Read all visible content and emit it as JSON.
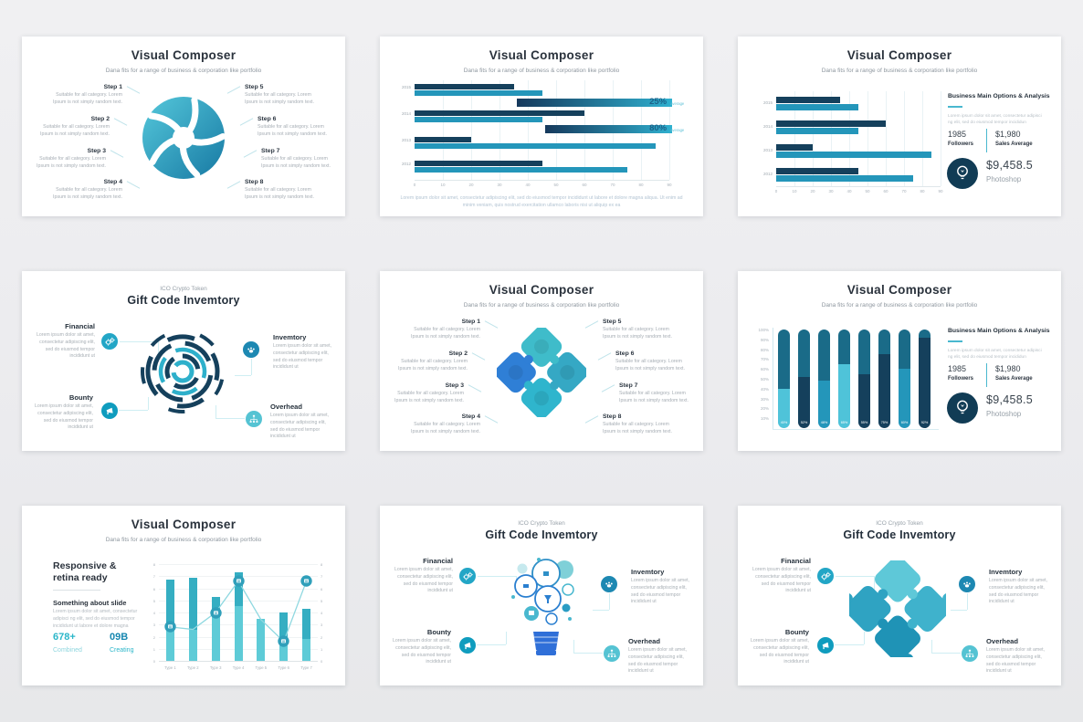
{
  "colors": {
    "dark": "#15405c",
    "darkteal": "#1a6b88",
    "teal": "#2496ba",
    "cyan": "#4fc3d9",
    "accent": "#49b8cf",
    "grad_start": "#16395c",
    "grad_end": "#2fb0cf",
    "panel_icon_bg": "#113c55"
  },
  "slides": [
    {
      "type": "steps",
      "variant": "pinwheel",
      "title": "Visual Composer",
      "subtitle": "Dana fits for a range of business & corporation like portfolio",
      "steps": [
        "Step 1",
        "Step 2",
        "Step 3",
        "Step 4",
        "Step 5",
        "Step 6",
        "Step 7",
        "Step 8"
      ],
      "step_desc": "Suitable for all category. Lorem Ipsum is not simply random text."
    },
    {
      "type": "hbar-wide",
      "title": "Visual Composer",
      "subtitle": "Dana fits for a range of business & corporation like portfolio",
      "caption_line1": "Lorem ipsum dolor sit amet, consectetur adipiscing elit, sed do eiusmod tempor incididunt ut labore et dolore magna aliqua. Ut enim ad",
      "caption_line2": "minim veniam, quis nostrud exercitation ullamco laboris nisi ut aliquip ex ea",
      "chart_data": {
        "type": "bar",
        "orientation": "horizontal",
        "xlim": [
          0,
          90
        ],
        "xticks": [
          0,
          10,
          20,
          30,
          40,
          50,
          60,
          70,
          80,
          90
        ],
        "rows": [
          {
            "kind": "pair",
            "label": "2015",
            "dark": 35,
            "teal": 45
          },
          {
            "kind": "highlight",
            "label": "25%",
            "suffix": "average",
            "start": 36,
            "end": 91
          },
          {
            "kind": "pair",
            "label": "2014",
            "dark": 60,
            "teal": 45
          },
          {
            "kind": "highlight",
            "label": "80%",
            "suffix": "average",
            "start": 46,
            "end": 91
          },
          {
            "kind": "pair",
            "label": "2013",
            "dark": 20,
            "teal": 85
          },
          {
            "kind": "pair",
            "label": "2012",
            "dark": 45,
            "teal": 75
          }
        ]
      }
    },
    {
      "type": "hbar-panel",
      "title": "Visual Composer",
      "subtitle": "Dana fits for a range of business & corporation like portfolio",
      "chart_data": {
        "type": "bar",
        "orientation": "horizontal",
        "categories": [
          "2015",
          "2014",
          "2013",
          "2012"
        ],
        "series": [
          {
            "name": "dark",
            "values": [
              35,
              60,
              20,
              45
            ]
          },
          {
            "name": "teal",
            "values": [
              45,
              45,
              85,
              75
            ]
          }
        ],
        "xlim": [
          0,
          90
        ],
        "xticks": [
          0,
          10,
          20,
          30,
          40,
          50,
          60,
          70,
          80,
          90
        ]
      },
      "panel": {
        "heading": "Business Main Options & Analysis",
        "desc": "Lorem ipsum dolor sit amet, consectetur adipisci ng elit, sed do eiusmod tempor incididun",
        "stat1_value": "1985",
        "stat1_label": "Followers",
        "stat2_value": "$1,980",
        "stat2_label": "Sales Average",
        "big_value": "$9,458.5",
        "big_label": "Photoshop",
        "icon": "lightbulb-icon"
      }
    },
    {
      "type": "ico",
      "variant": "radial-arcs",
      "kicker": "ICO Crypto Token",
      "title": "Gift Code Invemtory",
      "items": [
        {
          "label": "Financial",
          "icon": "gears-icon",
          "color": "#23a6c6",
          "desc": "Lorem ipsum dolor sit amet, consectetur adipiscing elit, sed do eiusmod tempor incididunt ut"
        },
        {
          "label": "Invemtory",
          "icon": "paw-icon",
          "color": "#1d88b2",
          "desc": "Lorem ipsum dolor sit amet, consectetur adipiscing elit, sed do eiusmod tempor incididunt ut"
        },
        {
          "label": "Bounty",
          "icon": "megaphone-icon",
          "color": "#0f9cbe",
          "desc": "Lorem ipsum dolor sit amet, consectetur adipiscing elit, sed do eiusmod tempor incididunt ut"
        },
        {
          "label": "Overhead",
          "icon": "sitemap-icon",
          "color": "#55c3d3",
          "desc": "Lorem ipsum dolor sit amet, consectetur adipiscing elit, sed do eiusmod tempor incididunt ut"
        }
      ]
    },
    {
      "type": "steps",
      "variant": "puzzle-diamond",
      "title": "Visual Composer",
      "subtitle": "Dana fits for a range of business & corporation like portfolio",
      "steps": [
        "Step 1",
        "Step 2",
        "Step 3",
        "Step 4",
        "Step 5",
        "Step 6",
        "Step 7",
        "Step 8"
      ],
      "step_desc": "Suitable for all category. Lorem Ipsum is not simply random text."
    },
    {
      "type": "vbar-panel",
      "title": "Visual Composer",
      "subtitle": "Dana fits for a range of business & corporation like portfolio",
      "chart_data": {
        "type": "bar",
        "orientation": "vertical",
        "ylim": [
          0,
          100
        ],
        "yticks": [
          "100%",
          "90%",
          "80%",
          "70%",
          "60%",
          "50%",
          "40%",
          "30%",
          "20%",
          "10%"
        ],
        "bars": [
          {
            "label": "40%",
            "split": 40,
            "bottom": "cyan"
          },
          {
            "label": "52%",
            "split": 52,
            "bottom": "navy"
          },
          {
            "label": "48%",
            "split": 48,
            "bottom": "teal"
          },
          {
            "label": "65%",
            "split": 65,
            "bottom": "cyan"
          },
          {
            "label": "55%",
            "split": 55,
            "bottom": "navy"
          },
          {
            "label": "75%",
            "split": 75,
            "bottom": "navy"
          },
          {
            "label": "60%",
            "split": 60,
            "bottom": "teal"
          },
          {
            "label": "92%",
            "split": 92,
            "bottom": "navy"
          }
        ]
      },
      "panel": {
        "heading": "Business Main Options & Analysis",
        "desc": "Lorem ipsum dolor sit amet, consectetur adipisci ng elit, sed do eiusmod tempor incididun",
        "stat1_value": "1985",
        "stat1_label": "Followers",
        "stat2_value": "$1,980",
        "stat2_label": "Sales Average",
        "big_value": "$9,458.5",
        "big_label": "Photoshop",
        "icon": "lightbulb-icon"
      }
    },
    {
      "type": "combo",
      "title": "Visual Composer",
      "subtitle": "Dana fits for a range of business & corporation like portfolio",
      "left": {
        "heading_line1": "Responsive &",
        "heading_line2": "retina ready",
        "subheading": "Something about slide",
        "desc": "Lorem ipsum dolor sit amet, consectetur adipisci ng elit, sed do eiusmod tempor incididunt ut labore et dolore magna",
        "stat1_value": "678+",
        "stat1_label": "Combined",
        "stat2_value": "09B",
        "stat2_label": "Creating"
      },
      "chart_data": {
        "type": "combo",
        "categories": [
          "Type 1",
          "Type 2",
          "Type 3",
          "Type 4",
          "Type 5",
          "Type 6",
          "Type 7"
        ],
        "bar_values": [
          6.7,
          6.9,
          5.3,
          7.3,
          3.5,
          4,
          4.3
        ],
        "bar_splits": [
          2.6,
          2.6,
          3.9,
          4.5,
          3.5,
          1.5,
          1.8
        ],
        "line_values": [
          2.8,
          2.6,
          4,
          6.6,
          3.4,
          1.6,
          6.6
        ],
        "marker_indices": [
          0,
          2,
          3,
          5,
          6
        ],
        "marker_icons": [
          "chat-icon",
          "calendar-icon",
          "grid-icon",
          "pencil-icon",
          "chart-icon"
        ],
        "ylim": [
          0,
          8
        ],
        "yticks": [
          0,
          1,
          2,
          3,
          4,
          5,
          6,
          7,
          8
        ]
      }
    },
    {
      "type": "ico",
      "variant": "lightbulb-bubbles",
      "kicker": "ICO Crypto Token",
      "title": "Gift Code Invemtory",
      "items": [
        {
          "label": "Financial",
          "icon": "gears-icon",
          "color": "#23a6c6",
          "desc": "Lorem ipsum dolor sit amet, consectetur adipiscing elit, sed do eiusmod tempor incididunt ut"
        },
        {
          "label": "Invemtory",
          "icon": "paw-icon",
          "color": "#1d88b2",
          "desc": "Lorem ipsum dolor sit amet, consectetur adipiscing elit, sed do eiusmod tempor incididunt ut"
        },
        {
          "label": "Bounty",
          "icon": "megaphone-icon",
          "color": "#0f9cbe",
          "desc": "Lorem ipsum dolor sit amet, consectetur adipiscing elit, sed do eiusmod tempor incididunt ut"
        },
        {
          "label": "Overhead",
          "icon": "sitemap-icon",
          "color": "#55c3d3",
          "desc": "Lorem ipsum dolor sit amet, consectetur adipiscing elit, sed do eiusmod tempor incididunt ut"
        }
      ]
    },
    {
      "type": "ico",
      "variant": "puzzle-rotated",
      "kicker": "ICO Crypto Token",
      "title": "Gift Code Invemtory",
      "items": [
        {
          "label": "Financial",
          "icon": "gears-icon",
          "color": "#23a6c6",
          "desc": "Lorem ipsum dolor sit amet, consectetur adipiscing elit, sed do eiusmod tempor incididunt ut"
        },
        {
          "label": "Invemtory",
          "icon": "paw-icon",
          "color": "#1d88b2",
          "desc": "Lorem ipsum dolor sit amet, consectetur adipiscing elit, sed do eiusmod tempor incididunt ut"
        },
        {
          "label": "Bounty",
          "icon": "megaphone-icon",
          "color": "#0f9cbe",
          "desc": "Lorem ipsum dolor sit amet, consectetur adipiscing elit, sed do eiusmod tempor incididunt ut"
        },
        {
          "label": "Overhead",
          "icon": "sitemap-icon",
          "color": "#55c3d3",
          "desc": "Lorem ipsum dolor sit amet, consectetur adipiscing elit, sed do eiusmod tempor incididunt ut"
        }
      ]
    }
  ]
}
